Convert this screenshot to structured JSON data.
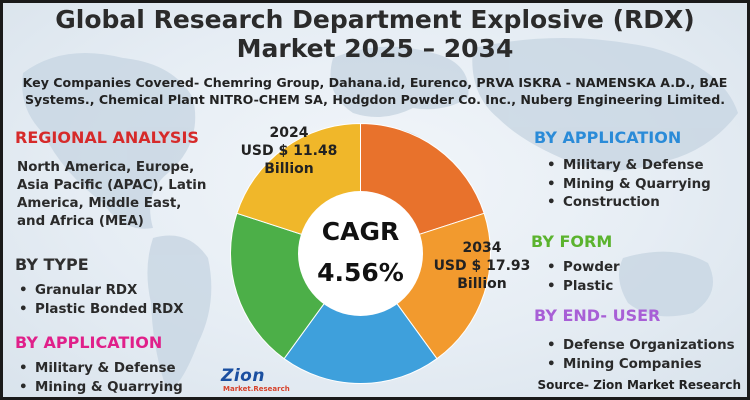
{
  "title_line1": "Global Research Department Explosive (RDX)",
  "title_line2": "Market 2025 – 2034",
  "key_companies_line1": "Key Companies Covered- Chemring Group, Dahana.id, Eurenco, PRVA ISKRA - NAMENSKA A.D., BAE",
  "key_companies_line2": "Systems., Chemical Plant NITRO-CHEM SA, Hodgdon Powder Co. Inc., Nuberg Engineering Limited.",
  "regional": {
    "heading": "REGIONAL ANALYSIS",
    "lines": [
      "North America, Europe,",
      "Asia Pacific (APAC), Latin",
      "America, Middle East,",
      "and Africa (MEA)"
    ]
  },
  "by_type": {
    "heading": "BY TYPE",
    "items": [
      "Granular RDX",
      "Plastic Bonded RDX"
    ]
  },
  "by_application_left": {
    "heading": "BY APPLICATION",
    "items": [
      "Military & Defense",
      "Mining & Quarrying"
    ]
  },
  "by_application_right": {
    "heading": "BY APPLICATION",
    "items": [
      "Military & Defense",
      "Mining & Quarrying",
      "Construction"
    ]
  },
  "by_form": {
    "heading": "BY FORM",
    "items": [
      "Powder",
      "Plastic"
    ]
  },
  "by_end_user": {
    "heading": "BY END- USER",
    "items": [
      "Defense Organizations",
      "Mining Companies"
    ]
  },
  "logo": {
    "main": "Zion",
    "sub": "Market.Research"
  },
  "source": "Source- Zion Market Research",
  "colors": {
    "regional": "#d62a2a",
    "by_type": "#2f2f2f",
    "by_application_left": "#e0208a",
    "by_application_right": "#2a8bd8",
    "by_form": "#5bb32e",
    "by_end_user": "#a85fd6"
  },
  "chart_data": {
    "type": "pie",
    "donut": true,
    "center_label": "CAGR",
    "center_value": "4.56%",
    "annotations": [
      {
        "year": "2024",
        "value": "USD $ 11.48",
        "unit": "Billion"
      },
      {
        "year": "2034",
        "value": "USD $ 17.93",
        "unit": "Billion"
      }
    ],
    "slices": [
      {
        "value": 0.2,
        "color": "#e8722c"
      },
      {
        "value": 0.2,
        "color": "#f29a2e"
      },
      {
        "value": 0.2,
        "color": "#3ea0dc"
      },
      {
        "value": 0.2,
        "color": "#4caf48"
      },
      {
        "value": 0.2,
        "color": "#f0b72a"
      }
    ]
  }
}
